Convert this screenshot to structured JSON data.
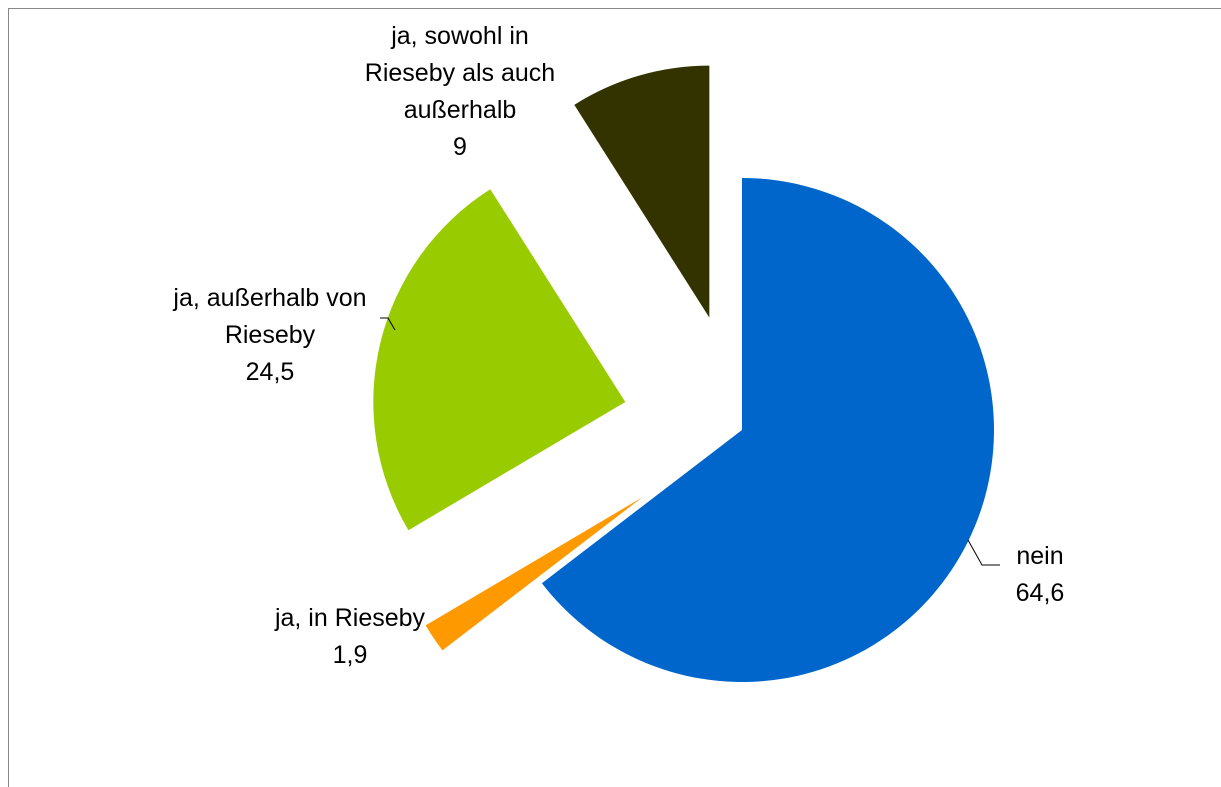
{
  "chart_data": {
    "type": "pie",
    "categories": [
      "nein",
      "ja, in Rieseby",
      "ja, außerhalb von Rieseby",
      "ja, sowohl in Rieseby als auch außerhalb"
    ],
    "values": [
      64.6,
      1.9,
      24.5,
      9
    ],
    "value_labels": [
      "64,6",
      "1,9",
      "24,5",
      "9"
    ],
    "colors": [
      "#0066cc",
      "#ff9900",
      "#99cc00",
      "#333300"
    ]
  }
}
